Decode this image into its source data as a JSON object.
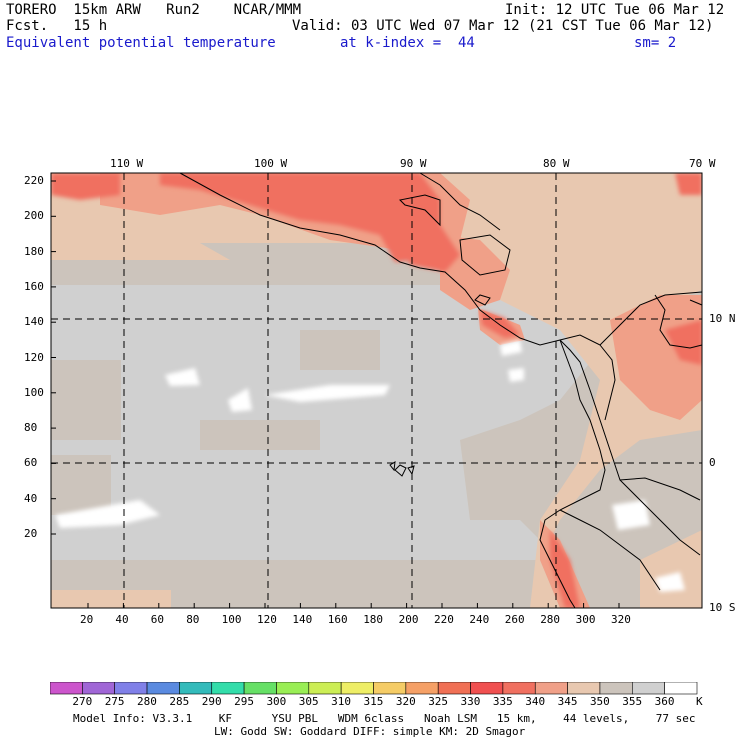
{
  "header": {
    "model": "TORERO  15km ARW   Run2    NCAR/MMM",
    "init": "Init: 12 UTC Tue 06 Mar 12",
    "fcst": "Fcst.   15 h",
    "valid": "Valid: 03 UTC Wed 07 Mar 12 (21 CST Tue 06 Mar 12)",
    "field": "Equivalent potential temperature",
    "level": "at k-index =  44",
    "smooth": "sm= 2"
  },
  "map": {
    "top_labels": [
      "110 W",
      "100 W",
      "90 W",
      "80 W",
      "70 W"
    ],
    "right_labels": [
      "10 N",
      "0",
      "10 S"
    ],
    "y_ticks": [
      "220",
      "200",
      "180",
      "160",
      "140",
      "120",
      "100",
      "80",
      "60",
      "40",
      "20"
    ],
    "x_ticks": [
      "20",
      "40",
      "60",
      "80",
      "100",
      "120",
      "140",
      "160",
      "180",
      "200",
      "220",
      "240",
      "260",
      "280",
      "300",
      "320"
    ]
  },
  "colorbar": {
    "labels": [
      "270",
      "275",
      "280",
      "285",
      "290",
      "295",
      "300",
      "305",
      "310",
      "315",
      "320",
      "325",
      "330",
      "335",
      "340",
      "345",
      "350",
      "355",
      "360"
    ],
    "unit": "K",
    "colors": [
      "#cc55cc",
      "#a066d6",
      "#8080e8",
      "#5a8ae0",
      "#33bbbb",
      "#33ddaa",
      "#66e066",
      "#99ee55",
      "#ccee55",
      "#eeee66",
      "#f5cc66",
      "#f5a066",
      "#f07055",
      "#f05050",
      "#f07060",
      "#f0a088",
      "#e8c8b0",
      "#ccc4bc",
      "#d0d0d0",
      "#ffffff"
    ]
  },
  "footer": {
    "line1": "Model Info: V3.3.1    KF      YSU PBL   WDM 6class   Noah LSM   15 km,    44 levels,    77 sec",
    "line2": "LW: Godd SW: Goddard DIFF: simple KM: 2D Smagor"
  }
}
